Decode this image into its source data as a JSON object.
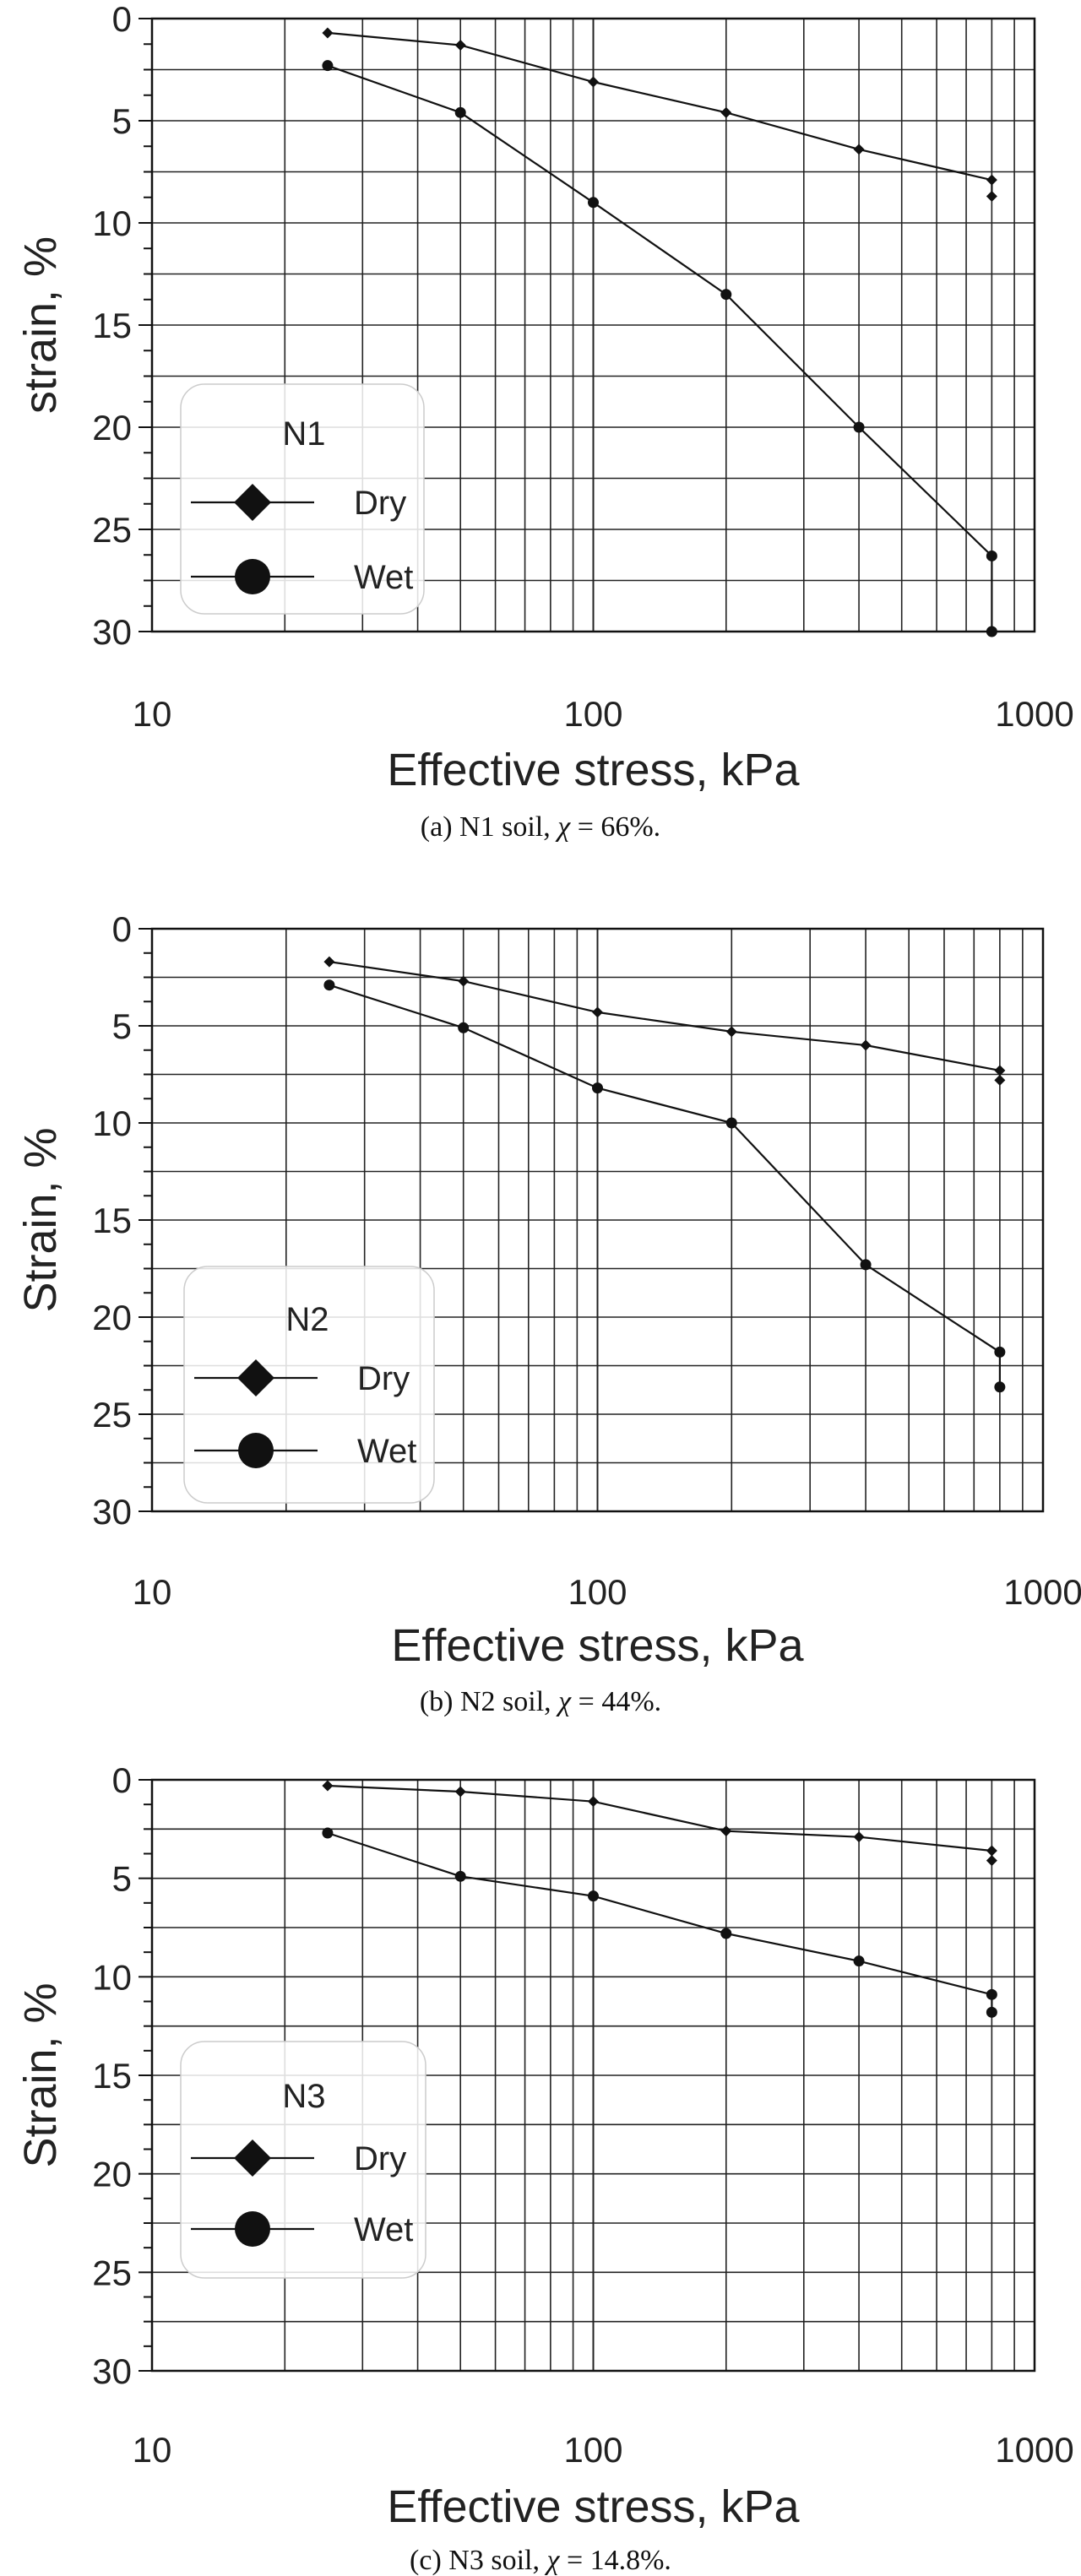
{
  "chart_data": [
    {
      "type": "line",
      "panel": "a",
      "x_scale": "log",
      "xlim": [
        10,
        1000
      ],
      "ylim": [
        0,
        30
      ],
      "y_inverted": true,
      "x_ticks": [
        10,
        100,
        1000
      ],
      "y_ticks": [
        0,
        5,
        10,
        15,
        20,
        25,
        30
      ],
      "xlabel": "Effective stress,  kPa",
      "ylabel": "strain,  %",
      "grid": true,
      "legend": {
        "title": "N1",
        "placement": "lower-left"
      },
      "series": [
        {
          "name": "Dry",
          "marker": "diamond",
          "x": [
            25,
            50,
            100,
            200,
            400,
            800,
            800
          ],
          "y": [
            0.7,
            1.3,
            3.1,
            4.6,
            6.4,
            7.9,
            8.7
          ]
        },
        {
          "name": "Wet",
          "marker": "circle",
          "x": [
            25,
            50,
            100,
            200,
            400,
            800,
            800
          ],
          "y": [
            2.3,
            4.6,
            9.0,
            13.5,
            20.0,
            26.3,
            30.0
          ]
        }
      ],
      "caption": {
        "prefix": "(a) N1 soil, ",
        "symbol": "χ",
        "suffix": " = 66%."
      }
    },
    {
      "type": "line",
      "panel": "b",
      "x_scale": "log",
      "xlim": [
        10,
        1000
      ],
      "ylim": [
        0,
        30
      ],
      "y_inverted": true,
      "x_ticks": [
        10,
        100,
        1000
      ],
      "y_ticks": [
        0,
        5,
        10,
        15,
        20,
        25,
        30
      ],
      "xlabel": "Effective stress,  kPa",
      "ylabel": "Strain,  %",
      "grid": true,
      "legend": {
        "title": "N2",
        "placement": "lower-left"
      },
      "series": [
        {
          "name": "Dry",
          "marker": "diamond",
          "x": [
            25,
            50,
            100,
            200,
            400,
            800,
            800
          ],
          "y": [
            1.7,
            2.7,
            4.3,
            5.3,
            6.0,
            7.3,
            7.8
          ]
        },
        {
          "name": "Wet",
          "marker": "circle",
          "x": [
            25,
            50,
            100,
            200,
            400,
            800,
            800
          ],
          "y": [
            2.9,
            5.1,
            8.2,
            10.0,
            17.3,
            21.8,
            23.6
          ]
        }
      ],
      "caption": {
        "prefix": "(b) N2 soil, ",
        "symbol": "χ",
        "suffix": " = 44%."
      }
    },
    {
      "type": "line",
      "panel": "c",
      "x_scale": "log",
      "xlim": [
        10,
        1000
      ],
      "ylim": [
        0,
        30
      ],
      "y_inverted": true,
      "x_ticks": [
        10,
        100,
        1000
      ],
      "y_ticks": [
        0,
        5,
        10,
        15,
        20,
        25,
        30
      ],
      "xlabel": "Effective stress,  kPa",
      "ylabel": "Strain,  %",
      "grid": true,
      "legend": {
        "title": "N3",
        "placement": "lower-left"
      },
      "series": [
        {
          "name": "Dry",
          "marker": "diamond",
          "x": [
            25,
            50,
            100,
            200,
            400,
            800,
            800
          ],
          "y": [
            0.3,
            0.6,
            1.1,
            2.6,
            2.9,
            3.6,
            4.1
          ]
        },
        {
          "name": "Wet",
          "marker": "circle",
          "x": [
            25,
            50,
            100,
            200,
            400,
            800,
            800
          ],
          "y": [
            2.7,
            4.9,
            5.9,
            7.8,
            9.2,
            10.9,
            11.8
          ]
        }
      ],
      "caption": {
        "prefix": "(c) N3 soil, ",
        "symbol": "χ",
        "suffix": " = 14.8%."
      }
    }
  ]
}
